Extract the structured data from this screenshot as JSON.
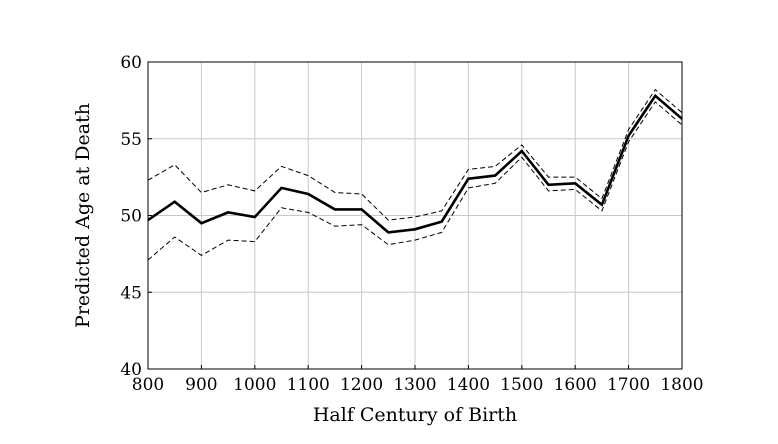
{
  "chart_data": {
    "type": "line",
    "title": "",
    "xlabel": "Half Century of Birth",
    "ylabel": "Predicted Age at Death",
    "xlim": [
      800,
      1800
    ],
    "ylim": [
      40,
      60
    ],
    "grid": true,
    "x_ticks": [
      "800",
      "900",
      "1000",
      "1100",
      "1200",
      "1300",
      "1400",
      "1500",
      "1600",
      "1700",
      "1800"
    ],
    "y_ticks": [
      "40",
      "45",
      "50",
      "55",
      "60"
    ],
    "x": [
      800,
      850,
      900,
      950,
      1000,
      1050,
      1100,
      1150,
      1200,
      1250,
      1300,
      1350,
      1400,
      1450,
      1500,
      1550,
      1600,
      1650,
      1700,
      1750,
      1800
    ],
    "series": [
      {
        "style": "solid",
        "values": [
          49.7,
          50.9,
          49.5,
          50.2,
          49.9,
          51.8,
          51.4,
          50.4,
          50.4,
          48.9,
          49.1,
          49.6,
          52.4,
          52.6,
          54.2,
          52.0,
          52.1,
          50.7,
          55.2,
          57.8,
          56.3
        ]
      },
      {
        "style": "dashed",
        "values": [
          52.3,
          53.3,
          51.5,
          52.0,
          51.6,
          53.2,
          52.6,
          51.5,
          51.4,
          49.7,
          49.9,
          50.3,
          53.0,
          53.2,
          54.6,
          52.5,
          52.5,
          51.1,
          55.6,
          58.2,
          56.7
        ]
      },
      {
        "style": "dashed",
        "values": [
          47.1,
          48.6,
          47.4,
          48.4,
          48.3,
          50.5,
          50.2,
          49.3,
          49.4,
          48.1,
          48.4,
          48.9,
          51.8,
          52.1,
          53.8,
          51.6,
          51.7,
          50.3,
          54.8,
          57.4,
          55.9
        ]
      }
    ],
    "colors": {
      "line": "#000000",
      "grid": "#c8c8c8",
      "frame": "#000000"
    }
  }
}
